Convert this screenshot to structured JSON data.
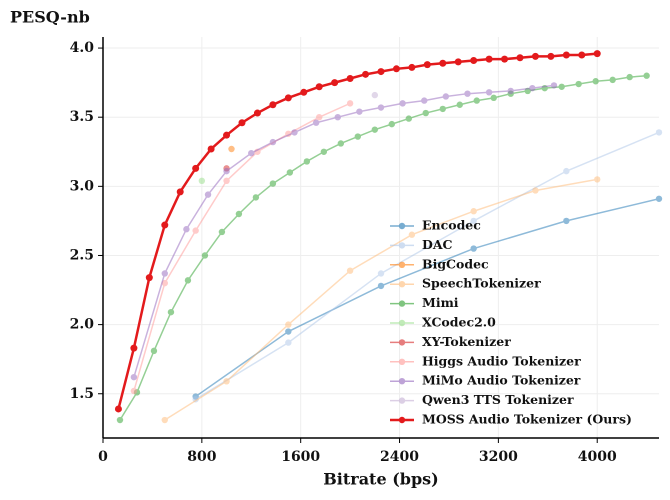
{
  "chart_data": {
    "type": "line",
    "y_label": "PESQ-nb",
    "x_label": "Bitrate (bps)",
    "xlim": [
      0,
      4500
    ],
    "ylim": [
      1.18,
      4.08
    ],
    "xticks": [
      0,
      800,
      1600,
      2400,
      3200,
      4000
    ],
    "yticks": [
      1.5,
      {
        "value": 2,
        "label": "2.0"
      },
      2.5,
      {
        "value": 3,
        "label": "3.0"
      },
      3.5,
      {
        "value": 4,
        "label": "4.0"
      }
    ],
    "grid": true,
    "legend": "lower right",
    "series": [
      {
        "name": "Encodec",
        "color": "#1f77b4",
        "x": [
          750,
          1500,
          2250,
          3000,
          3750,
          4500
        ],
        "values": [
          1.48,
          1.95,
          2.28,
          2.55,
          2.75,
          2.91
        ]
      },
      {
        "name": "DAC",
        "color": "#aec7e8",
        "x": [
          750,
          1500,
          2250,
          3000,
          3750,
          4500
        ],
        "values": [
          1.46,
          1.87,
          2.37,
          2.75,
          3.11,
          3.39
        ]
      },
      {
        "name": "BigCodec",
        "color": "#ff7f0e",
        "x": [
          1040
        ],
        "values": [
          3.27
        ]
      },
      {
        "name": "SpeechTokenizer",
        "color": "#ffbb78",
        "x": [
          500,
          1000,
          1500,
          2000,
          2500,
          3000,
          3500,
          4000
        ],
        "values": [
          1.31,
          1.59,
          2.0,
          2.39,
          2.65,
          2.82,
          2.97,
          3.05
        ]
      },
      {
        "name": "Mimi",
        "color": "#2ca02c",
        "x": [
          137.5,
          275,
          412.5,
          550,
          687.5,
          825,
          962.5,
          1100,
          1237.5,
          1375,
          1512.5,
          1650,
          1787.5,
          1925,
          2062.5,
          2200,
          2337.5,
          2475,
          2612.5,
          2750,
          2887.5,
          3025,
          3162.5,
          3300,
          3437.5,
          3575,
          3712.5,
          3850,
          3987.5,
          4125,
          4262.5,
          4400
        ],
        "values": [
          1.31,
          1.51,
          1.81,
          2.09,
          2.32,
          2.5,
          2.67,
          2.8,
          2.92,
          3.02,
          3.1,
          3.18,
          3.25,
          3.31,
          3.36,
          3.41,
          3.45,
          3.49,
          3.53,
          3.56,
          3.59,
          3.62,
          3.64,
          3.67,
          3.69,
          3.71,
          3.72,
          3.74,
          3.76,
          3.77,
          3.79,
          3.8
        ]
      },
      {
        "name": "XCodec2.0",
        "color": "#98df8a",
        "x": [
          800
        ],
        "values": [
          3.04
        ]
      },
      {
        "name": "XY-Tokenizer",
        "color": "#d62728",
        "x": [
          1000
        ],
        "values": [
          3.13
        ]
      },
      {
        "name": "Higgs Audio Tokenizer",
        "color": "#ff9896",
        "x": [
          250,
          500,
          750,
          1000,
          1250,
          1500,
          1750,
          2000
        ],
        "values": [
          1.52,
          2.3,
          2.68,
          3.04,
          3.25,
          3.38,
          3.5,
          3.6
        ]
      },
      {
        "name": "MiMo Audio Tokenizer",
        "color": "#9467bd",
        "x": [
          250,
          500,
          675,
          850,
          1000,
          1200,
          1375,
          1550,
          1725,
          1900,
          2075,
          2250,
          2425,
          2600,
          2775,
          2950,
          3125,
          3300,
          3475,
          3650
        ],
        "values": [
          1.62,
          2.37,
          2.69,
          2.94,
          3.11,
          3.24,
          3.32,
          3.39,
          3.46,
          3.5,
          3.54,
          3.57,
          3.6,
          3.62,
          3.65,
          3.67,
          3.68,
          3.69,
          3.71,
          3.73
        ]
      },
      {
        "name": "Qwen3 TTS Tokenizer",
        "color": "#c5b0d5",
        "x": [
          2200
        ],
        "values": [
          3.66
        ]
      },
      {
        "name": "MOSS Audio Tokenizer (Ours)",
        "color": "#e31a1c",
        "x": [
          125,
          250,
          375,
          500,
          625,
          750,
          875,
          1000,
          1125,
          1250,
          1375,
          1500,
          1625,
          1750,
          1875,
          2000,
          2125,
          2250,
          2375,
          2500,
          2625,
          2750,
          2875,
          3000,
          3125,
          3250,
          3375,
          3500,
          3625,
          3750,
          3875,
          4000
        ],
        "values": [
          1.39,
          1.83,
          2.34,
          2.72,
          2.96,
          3.13,
          3.27,
          3.37,
          3.46,
          3.53,
          3.59,
          3.64,
          3.68,
          3.72,
          3.75,
          3.78,
          3.81,
          3.83,
          3.85,
          3.86,
          3.88,
          3.89,
          3.9,
          3.91,
          3.92,
          3.92,
          3.93,
          3.94,
          3.94,
          3.95,
          3.95,
          3.96
        ]
      }
    ]
  }
}
